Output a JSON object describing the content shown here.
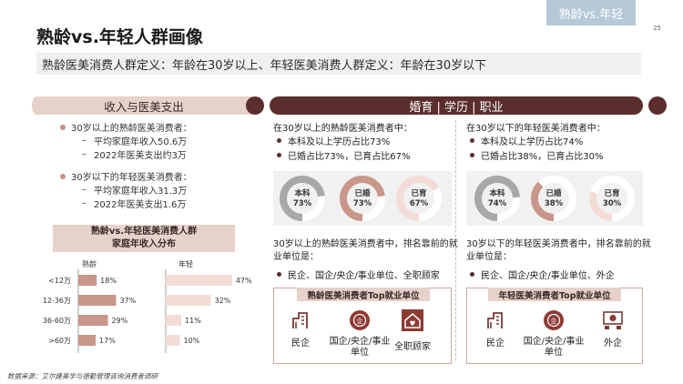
{
  "corner_tag": "熟龄vs.年轻",
  "page_number": "25",
  "title": "熟龄vs.年轻人群画像",
  "subtitle": "熟龄医美消费人群定义：年龄在30岁以上、年轻医美消费人群定义：年龄在30岁以下",
  "left_section": {
    "heading": "收入与医美支出",
    "mature": {
      "head": "30岁以上的熟龄医美消费者：",
      "items": [
        "平均家庭年收入50.6万",
        "2022年医美支出约3万"
      ]
    },
    "young": {
      "head": "30岁以下的年轻医美消费者：",
      "items": [
        "平均家庭年收入31.3万",
        "2022年医美支出1.6万"
      ]
    },
    "dist_title_line1": "熟龄vs.年轻医美消费人群",
    "dist_title_line2": "家庭年收入分布"
  },
  "chart_data": {
    "type": "bar",
    "categories": [
      "<12万",
      "12-36万",
      "36-60万",
      ">60万"
    ],
    "series": [
      {
        "name": "熟龄",
        "values": [
          18,
          37,
          29,
          17
        ],
        "labels": [
          "18%",
          "37%",
          "29%",
          "17%"
        ]
      },
      {
        "name": "年轻",
        "values": [
          47,
          32,
          11,
          10
        ],
        "labels": [
          "47%",
          "32%",
          "11%",
          "10%"
        ]
      }
    ],
    "colors": {
      "mature": "#c9968a",
      "young": "#f2dcd5"
    }
  },
  "right_section": {
    "heading": "婚育 | 学历 | 职业",
    "mature": {
      "intro": "在30岁以上的熟龄医美消费者中：",
      "line1": "本科及以上学历占比73%",
      "line2": "已婚占比73%，已育占比67%",
      "rings": [
        {
          "name": "本科",
          "value_label": "73%",
          "value": 73,
          "color": "#a8a8a8"
        },
        {
          "name": "已婚",
          "value_label": "73%",
          "value": 73,
          "color": "#c9968a"
        },
        {
          "name": "已育",
          "value_label": "67%",
          "value": 67,
          "color": "#f2dcd5"
        }
      ],
      "rank_text": "30岁以上的熟龄医美消费者中，排名靠前的就业单位是：",
      "employers_line": "民企、国企/央企/事业单位、全职顾家",
      "top_title": "熟龄医美消费者Top就业单位",
      "top": [
        {
          "icon": "building-icon",
          "label": "民企"
        },
        {
          "icon": "soe-icon",
          "label": "国企/央企/事业单位"
        },
        {
          "icon": "home-heart-icon",
          "label": "全职顾家"
        }
      ]
    },
    "young": {
      "intro": "在30岁以下的年轻医美消费者中：",
      "line1": "本科及以上学历占比74%",
      "line2": "已婚占比38%，已育占比30%",
      "rings": [
        {
          "name": "本科",
          "value_label": "74%",
          "value": 74,
          "color": "#a8a8a8"
        },
        {
          "name": "已婚",
          "value_label": "38%",
          "value": 38,
          "color": "#c9968a"
        },
        {
          "name": "已育",
          "value_label": "30%",
          "value": 30,
          "color": "#f2dcd5"
        }
      ],
      "rank_text": "30岁以下的年轻医美消费者中，排名靠前的就业单位是：",
      "employers_line": "民企、国企/央企/事业单位、外企",
      "top_title": "年轻医美消费者Top就业单位",
      "top": [
        {
          "icon": "building-icon",
          "label": "民企"
        },
        {
          "icon": "soe-icon",
          "label": "国企/央企/事业单位"
        },
        {
          "icon": "foreign-company-icon",
          "label": "外企"
        }
      ]
    }
  },
  "source": "数据来源：艾尔建美学与德勤管理咨询消费者调研"
}
